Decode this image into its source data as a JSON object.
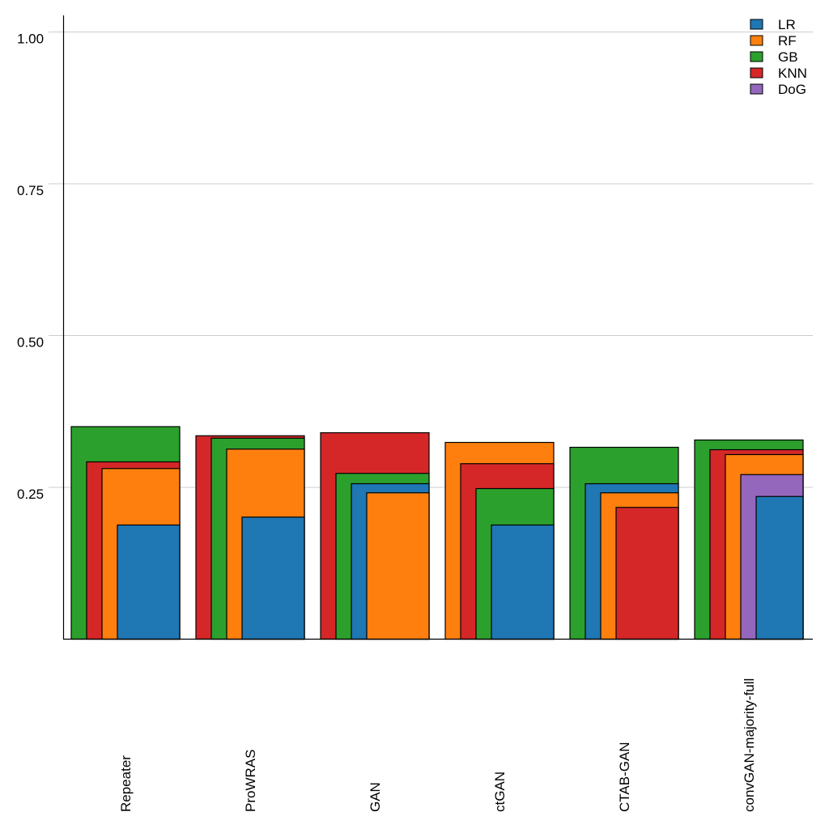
{
  "chart_data": {
    "type": "bar",
    "style": "nested-overlapping",
    "title": "",
    "xlabel": "",
    "ylabel": "",
    "ylim": [
      0,
      1.0
    ],
    "yticks": [
      "0.25",
      "0.50",
      "0.75",
      "1.00"
    ],
    "ytick_values": [
      0.25,
      0.5,
      0.75,
      1.0
    ],
    "grid": "horizontal",
    "legend_position": "top-right",
    "categories": [
      "Repeater",
      "ProWRAS",
      "GAN",
      "ctGAN",
      "CTAB-GAN",
      "convGAN-majority-full"
    ],
    "series": [
      {
        "name": "LR",
        "color": "#1f77b4",
        "values": [
          0.188,
          0.201,
          0.256,
          0.188,
          0.256,
          0.235
        ]
      },
      {
        "name": "RF",
        "color": "#ff7f0e",
        "values": [
          0.281,
          0.313,
          0.241,
          0.324,
          0.241,
          0.304
        ]
      },
      {
        "name": "GB",
        "color": "#2ca02c",
        "values": [
          0.35,
          0.331,
          0.273,
          0.248,
          0.316,
          0.328
        ]
      },
      {
        "name": "KNN",
        "color": "#d62728",
        "values": [
          0.292,
          0.335,
          0.34,
          0.289,
          0.217,
          0.312
        ]
      },
      {
        "name": "DoG",
        "color": "#9467bd",
        "values": [
          null,
          null,
          null,
          null,
          null,
          0.271
        ]
      }
    ]
  }
}
